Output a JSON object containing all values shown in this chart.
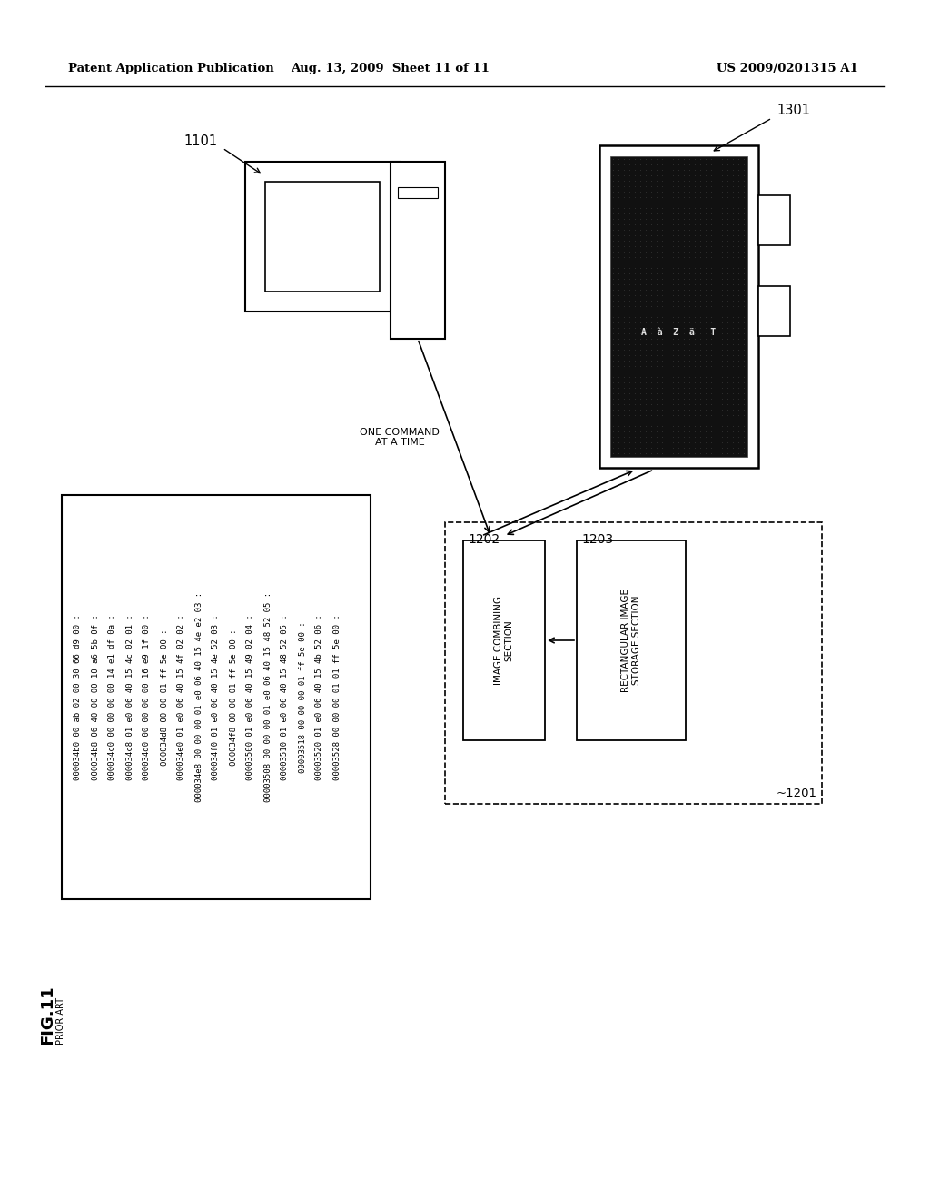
{
  "title_left": "Patent Application Publication",
  "title_mid": "Aug. 13, 2009  Sheet 11 of 11",
  "title_right": "US 2009/0201315 A1",
  "fig_label": "FIG.11",
  "fig_sublabel": "PRIOR ART",
  "label_1101": "1101",
  "label_1201": "~1201",
  "label_1202": "1202",
  "label_1203": "1203",
  "label_1301": "1301",
  "cmd_label": "ONE COMMAND\nAT A TIME",
  "img_combining": "IMAGE COMBINING\nSECTION",
  "rect_img_storage": "RECTANGULAR IMAGE\nSTORAGE SECTION",
  "hex_lines": [
    "000034b0 00 ab 02 00 30 66 d9 00 :",
    "000034b8 06 40 00 00 10 a6 5b 0f :",
    "000034c0 00 00 00 00 14 e1 df 0a :",
    "000034c8 01 e0 06 40 15 4c 02 01 :",
    "000034d0 00 00 00 00 16 e9 1f 00 :",
    "000034d8 00 00 01 ff 5e 00 :",
    "000034e0 01 e0 06 40 15 4f 02 02 :",
    "000034e8 00 00 00 01 e0 06 40 15 4e e2 03 :",
    "000034f0 01 e0 06 40 15 4e 52 03 :",
    "000034f8 00 00 01 ff 5e 00 :",
    "00003500 01 e0 06 40 15 49 02 04 :",
    "00003508 00 00 00 01 e0 06 40 15 48 52 05 :",
    "00003510 01 e0 06 40 15 48 52 05 :",
    "00003518 00 00 00 01 ff 5e 00 :",
    "00003520 01 e0 06 40 15 4b 52 06 :",
    "00003528 00 00 00 01 01 ff 5e 00 :"
  ],
  "bg_color": "#ffffff",
  "text_color": "#000000",
  "line_color": "#000000"
}
